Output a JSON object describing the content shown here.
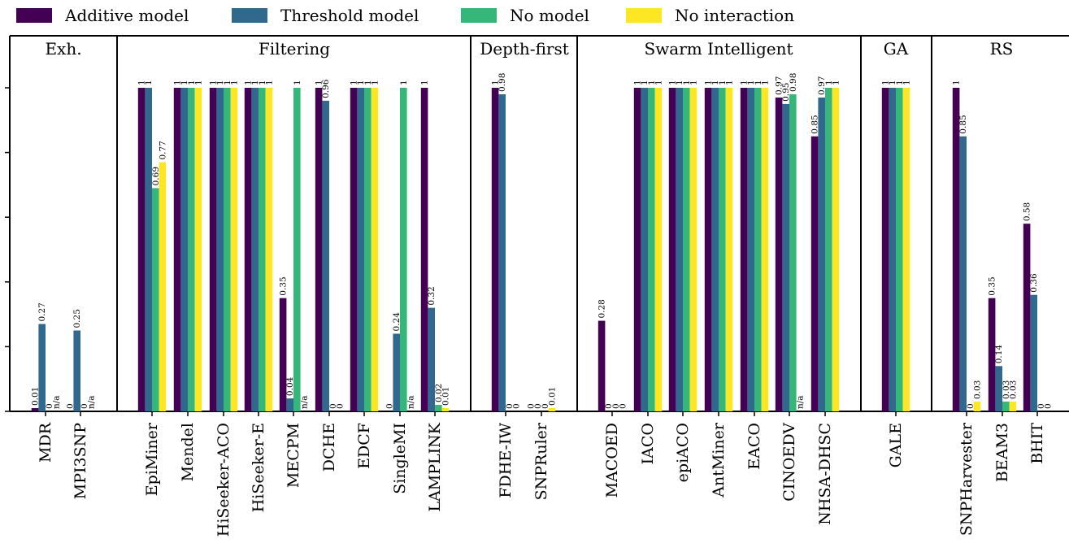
{
  "chart_data": {
    "type": "bar",
    "ylim": [
      0,
      1
    ],
    "series": [
      {
        "name": "Additive model",
        "color": "#440154"
      },
      {
        "name": "Threshold model",
        "color": "#31688e"
      },
      {
        "name": "No model",
        "color": "#35b779"
      },
      {
        "name": "No interaction",
        "color": "#fde725"
      }
    ],
    "groups": [
      {
        "name": "Exh.",
        "categories": [
          {
            "name": "MDR",
            "values": [
              0.01,
              0.27,
              0,
              "n/a"
            ],
            "labels": [
              "0.01",
              "0.27",
              "0",
              "n/a"
            ]
          },
          {
            "name": "MPI3SNP",
            "values": [
              0,
              0.25,
              0,
              "n/a"
            ],
            "labels": [
              "0",
              "0.25",
              "0",
              "n/a"
            ]
          }
        ]
      },
      {
        "name": "Filtering",
        "categories": [
          {
            "name": "EpiMiner",
            "values": [
              1,
              1,
              0.69,
              0.77
            ],
            "labels": [
              "1",
              "1",
              "0.69",
              "0.77"
            ]
          },
          {
            "name": "Mendel",
            "values": [
              1,
              1,
              1,
              1
            ],
            "labels": [
              "1",
              "1",
              "1",
              "1"
            ]
          },
          {
            "name": "HiSeeker-ACO",
            "values": [
              1,
              1,
              1,
              1
            ],
            "labels": [
              "1",
              "1",
              "1",
              "1"
            ]
          },
          {
            "name": "HiSeeker-E",
            "values": [
              1,
              1,
              1,
              1
            ],
            "labels": [
              "1",
              "1",
              "1",
              "1"
            ]
          },
          {
            "name": "MECPM",
            "values": [
              0.35,
              0.04,
              1,
              "n/a"
            ],
            "labels": [
              "0.35",
              "0.04",
              "1",
              "n/a"
            ]
          },
          {
            "name": "DCHE",
            "values": [
              1,
              0.96,
              0,
              0
            ],
            "labels": [
              "1",
              "0.96",
              "0",
              "0"
            ]
          },
          {
            "name": "EDCF",
            "values": [
              1,
              1,
              1,
              1
            ],
            "labels": [
              "1",
              "1",
              "1",
              "1"
            ]
          },
          {
            "name": "SingleMI",
            "values": [
              0,
              0.24,
              1,
              "n/a"
            ],
            "labels": [
              "0",
              "0.24",
              "1",
              "n/a"
            ]
          },
          {
            "name": "LAMPLINK",
            "values": [
              1,
              0.32,
              0.02,
              0.01
            ],
            "labels": [
              "1",
              "0.32",
              "0.02",
              "0.01"
            ]
          }
        ]
      },
      {
        "name": "Depth-first",
        "categories": [
          {
            "name": "FDHE-IW",
            "values": [
              1,
              0.98,
              0,
              0
            ],
            "labels": [
              "1",
              "0.98",
              "0",
              "0"
            ]
          },
          {
            "name": "SNPRuler",
            "values": [
              0,
              0,
              0,
              0.01
            ],
            "labels": [
              "0",
              "0",
              "0",
              "0.01"
            ]
          }
        ]
      },
      {
        "name": "Swarm Intelligent",
        "categories": [
          {
            "name": "MACOED",
            "values": [
              0.28,
              0,
              0,
              0
            ],
            "labels": [
              "0.28",
              "0",
              "0",
              "0"
            ]
          },
          {
            "name": "IACO",
            "values": [
              1,
              1,
              1,
              1
            ],
            "labels": [
              "1",
              "1",
              "1",
              "1"
            ]
          },
          {
            "name": "epiACO",
            "values": [
              1,
              1,
              1,
              1
            ],
            "labels": [
              "1",
              "1",
              "1",
              "1"
            ]
          },
          {
            "name": "AntMiner",
            "values": [
              1,
              1,
              1,
              1
            ],
            "labels": [
              "1",
              "1",
              "1",
              "1"
            ]
          },
          {
            "name": "EACO",
            "values": [
              1,
              1,
              1,
              1
            ],
            "labels": [
              "1",
              "1",
              "1",
              "1"
            ]
          },
          {
            "name": "CINOEDV",
            "values": [
              0.97,
              0.95,
              0.98,
              "n/a"
            ],
            "labels": [
              "0.97",
              "0.95",
              "0.98",
              "n/a"
            ]
          },
          {
            "name": "NHSA-DHSC",
            "values": [
              0.85,
              0.97,
              1,
              1
            ],
            "labels": [
              "0.85",
              "0.97",
              "1",
              "1"
            ]
          }
        ]
      },
      {
        "name": "GA",
        "categories": [
          {
            "name": "GALE",
            "values": [
              1,
              1,
              1,
              1
            ],
            "labels": [
              "1",
              "1",
              "1",
              "1"
            ]
          }
        ]
      },
      {
        "name": "RS",
        "categories": [
          {
            "name": "SNPHarvester",
            "values": [
              1,
              0.85,
              0,
              0.03
            ],
            "labels": [
              "1",
              "0.85",
              "0",
              "0.03"
            ]
          },
          {
            "name": "BEAM3",
            "values": [
              0.35,
              0.14,
              0.03,
              0.03
            ],
            "labels": [
              "0.35",
              "0.14",
              "0.03",
              "0.03"
            ]
          },
          {
            "name": "BHIT",
            "values": [
              0.58,
              0.36,
              0,
              0
            ],
            "labels": [
              "0.58",
              "0.36",
              "0",
              "0"
            ]
          }
        ]
      }
    ]
  }
}
